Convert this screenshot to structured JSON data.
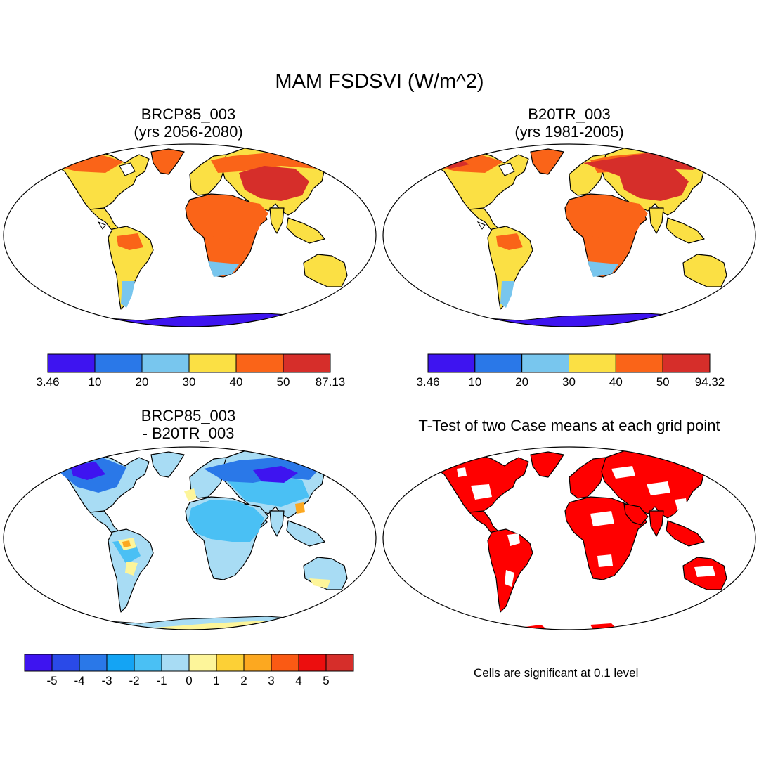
{
  "figure": {
    "title": "MAM FSDSVI (W/m^2)"
  },
  "panels": [
    {
      "id": "case1",
      "title_line1": "BRCP85_003",
      "title_line2": "(yrs 2056-2080)",
      "colorbar": {
        "colors": [
          "#3e14f0",
          "#2a78e8",
          "#78c6ee",
          "#fbe044",
          "#fa6418",
          "#d62e2a"
        ],
        "labels": [
          "3.46",
          "10",
          "20",
          "30",
          "40",
          "50",
          "87.13"
        ]
      }
    },
    {
      "id": "case2",
      "title_line1": "B20TR_003",
      "title_line2": "(yrs 1981-2005)",
      "colorbar": {
        "colors": [
          "#3e14f0",
          "#2a78e8",
          "#78c6ee",
          "#fbe044",
          "#fa6418",
          "#d62e2a"
        ],
        "labels": [
          "3.46",
          "10",
          "20",
          "30",
          "40",
          "50",
          "94.32"
        ]
      }
    },
    {
      "id": "difference",
      "title_line1": "BRCP85_003",
      "title_line2": "- B20TR_003",
      "colorbar": {
        "colors": [
          "#3e14f0",
          "#2a4ae8",
          "#2a78e8",
          "#14a4f4",
          "#4ac0f4",
          "#a8dcf4",
          "#fdf59a",
          "#fcd036",
          "#fca820",
          "#fa5a14",
          "#ec0e0e",
          "#d62e2a"
        ],
        "labels": [
          "-5",
          "-4",
          "-3",
          "-2",
          "-1",
          "0",
          "1",
          "2",
          "3",
          "4",
          "5"
        ]
      }
    },
    {
      "id": "ttest",
      "title_line1": "T-Test of two Case means at each grid point",
      "note": "Cells are significant at 0.1 level",
      "fill_color": "#ff0000"
    }
  ]
}
